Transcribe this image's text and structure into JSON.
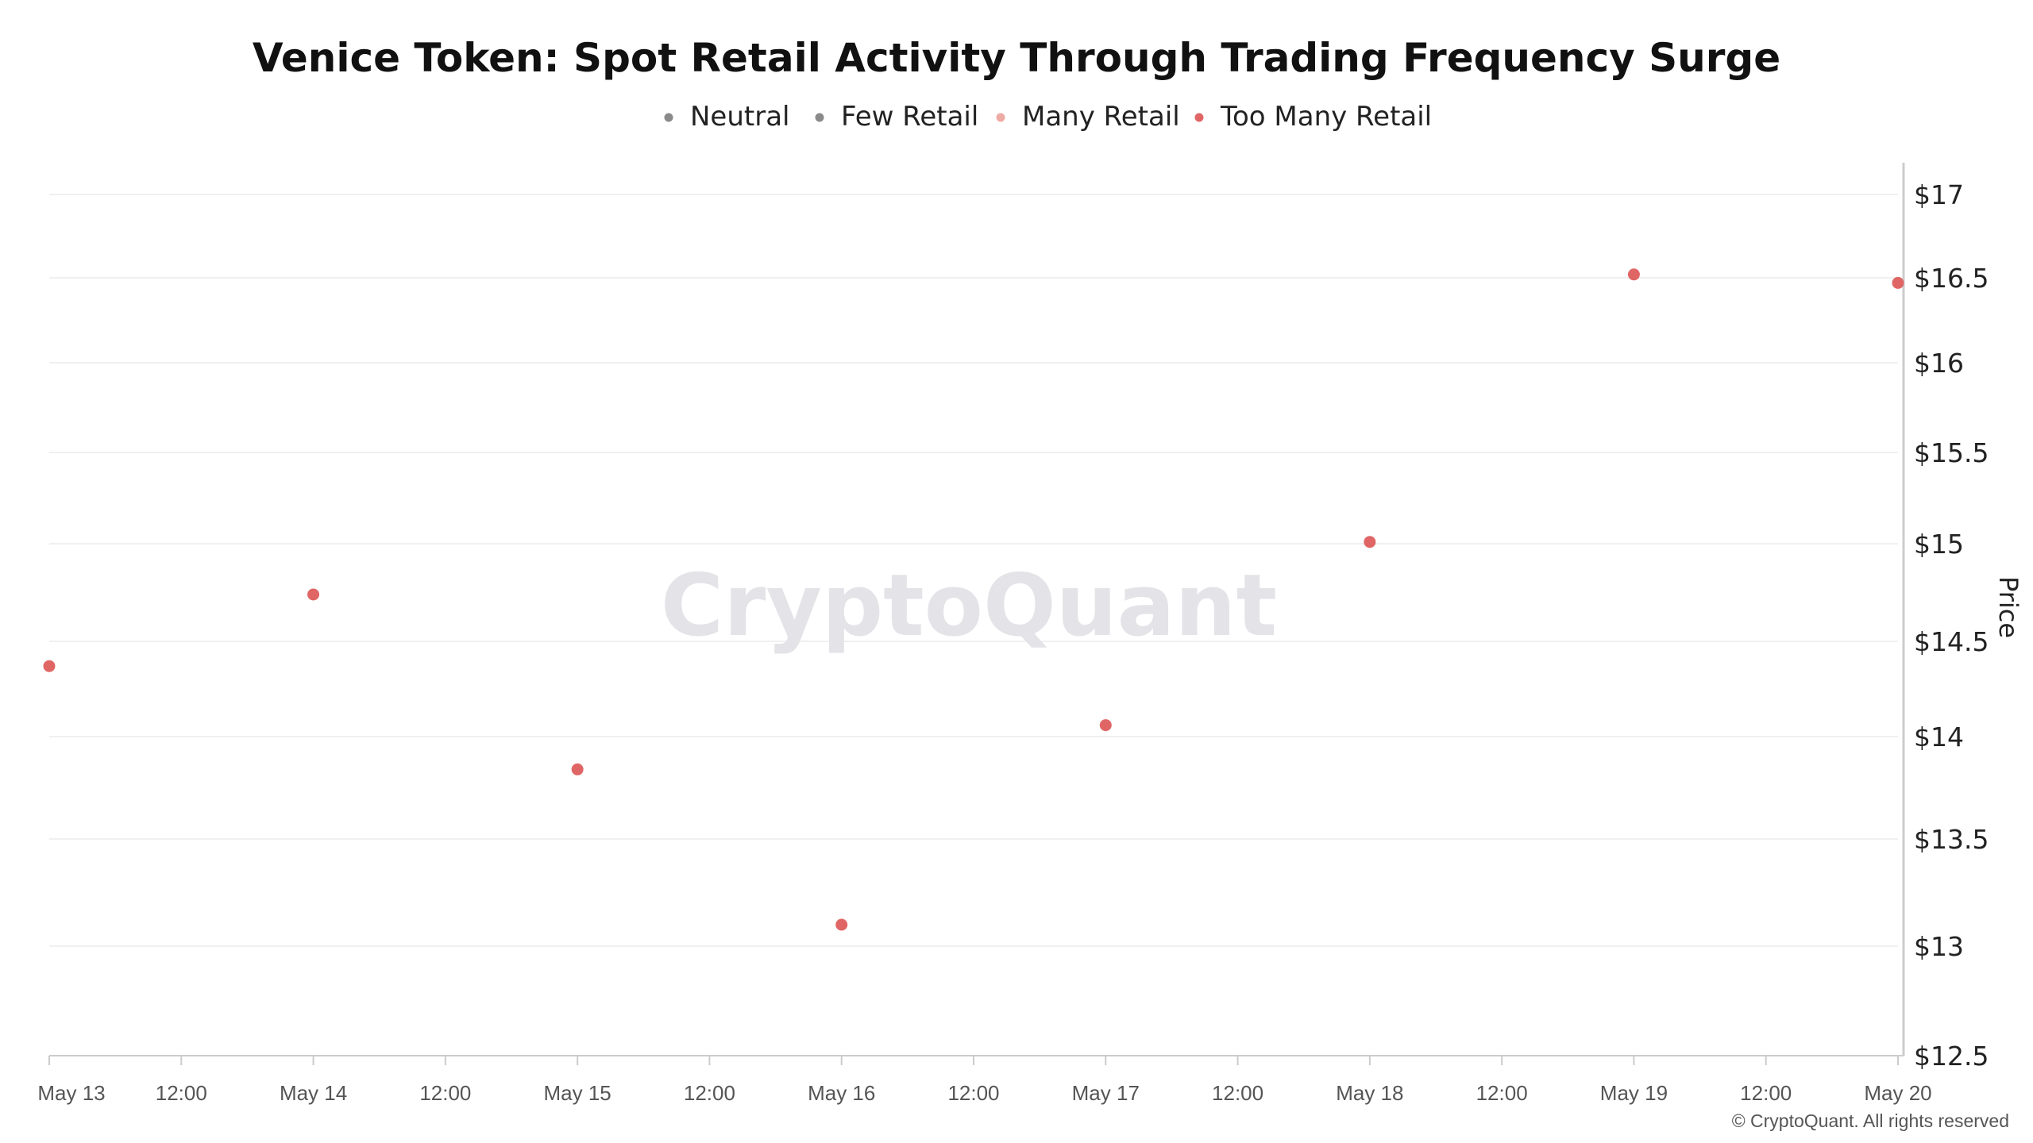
{
  "chart_data": {
    "type": "scatter",
    "title": "Venice Token: Spot Retail Activity Through Trading Frequency Surge",
    "ylabel": "Price",
    "ylim": [
      12.5,
      17
    ],
    "y_ticks": [
      "$12.5",
      "$13",
      "$13.5",
      "$14",
      "$14.5",
      "$15",
      "$15.5",
      "$16",
      "$16.5",
      "$17"
    ],
    "y_tick_values": [
      12.5,
      13,
      13.5,
      14,
      14.5,
      15,
      15.5,
      16,
      16.5,
      17
    ],
    "xlim": [
      "2025-05-13T00:00",
      "2025-05-20T00:00"
    ],
    "x_ticks": [
      "May 13",
      "12:00",
      "May 14",
      "12:00",
      "May 15",
      "12:00",
      "May 16",
      "12:00",
      "May 17",
      "12:00",
      "May 18",
      "12:00",
      "May 19",
      "12:00",
      "May 20"
    ],
    "grid": "horizontal",
    "legend_position": "top-center",
    "legend": [
      {
        "name": "Neutral",
        "color": "#8a8a8a"
      },
      {
        "name": "Few Retail",
        "color": "#8a8a8a"
      },
      {
        "name": "Many Retail",
        "color": "#eeaaa4"
      },
      {
        "name": "Too Many Retail",
        "color": "#e06666"
      }
    ],
    "series": [
      {
        "name": "Too Many Retail",
        "color": "#e06666",
        "x": [
          "2025-05-13",
          "2025-05-14",
          "2025-05-15",
          "2025-05-16",
          "2025-05-17",
          "2025-05-18",
          "2025-05-19",
          "2025-05-20"
        ],
        "values": [
          14.37,
          14.74,
          13.84,
          13.1,
          14.06,
          15.01,
          16.52,
          16.47
        ]
      }
    ]
  },
  "watermark": "CryptoQuant",
  "copyright": "© CryptoQuant. All rights reserved"
}
